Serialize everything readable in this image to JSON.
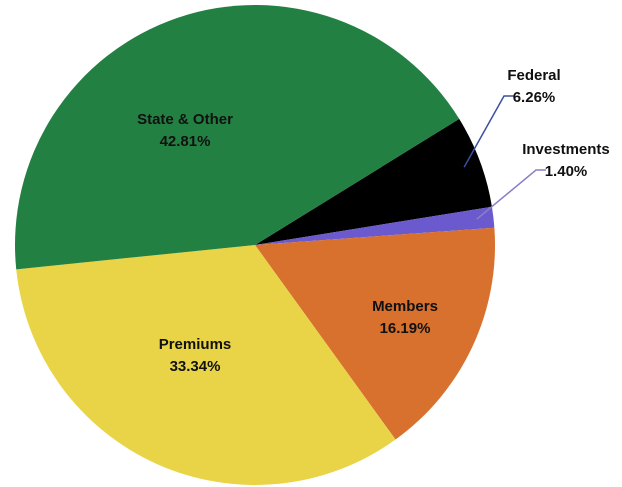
{
  "chart_data": {
    "type": "pie",
    "categories": [
      "Federal",
      "Investments",
      "Members",
      "Premiums",
      "State & Other"
    ],
    "values": [
      6.26,
      1.4,
      16.19,
      33.34,
      42.81
    ],
    "value_labels": [
      "6.26%",
      "1.40%",
      "16.19%",
      "33.34%",
      "42.81%"
    ],
    "colors": [
      "#000000",
      "#6a5acd",
      "#d8702e",
      "#e8d446",
      "#238043"
    ]
  }
}
